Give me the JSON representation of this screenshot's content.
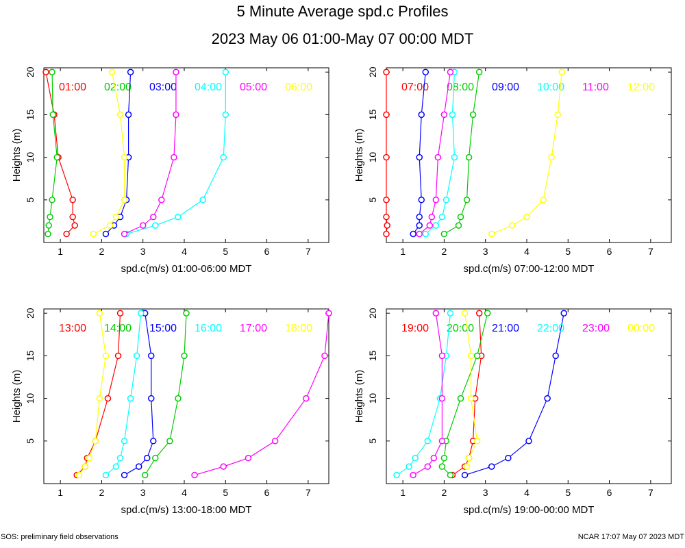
{
  "page": {
    "title": "5 Minute Average spd.c Profiles",
    "subtitle": "2023 May 06 01:00-May 07 00:00 MDT",
    "footer_left": "SOS: preliminary field observations",
    "footer_right": "NCAR 17:07 May 07 2023 MDT"
  },
  "chart_data": [
    {
      "type": "line",
      "xlabel": "spd.c(m/s) 01:00-06:00 MDT",
      "ylabel": "Heights (m)",
      "xlim": [
        0.6,
        7.5
      ],
      "ylim": [
        0,
        20.5
      ],
      "xticks": [
        1,
        2,
        3,
        4,
        5,
        6,
        7
      ],
      "yticks": [
        5,
        10,
        15,
        20
      ],
      "series": [
        {
          "name": "01:00",
          "color": "#ff0000",
          "points": [
            [
              1.15,
              1
            ],
            [
              1.35,
              2
            ],
            [
              1.3,
              3
            ],
            [
              1.3,
              5
            ],
            [
              0.95,
              10
            ],
            [
              0.85,
              15
            ],
            [
              0.65,
              20
            ]
          ]
        },
        {
          "name": "02:00",
          "color": "#00cc00",
          "points": [
            [
              0.7,
              1
            ],
            [
              0.72,
              2
            ],
            [
              0.75,
              3
            ],
            [
              0.8,
              5
            ],
            [
              0.92,
              10
            ],
            [
              0.82,
              15
            ],
            [
              0.8,
              20
            ]
          ]
        },
        {
          "name": "03:00",
          "color": "#0000ff",
          "points": [
            [
              2.1,
              1
            ],
            [
              2.3,
              2
            ],
            [
              2.45,
              3
            ],
            [
              2.6,
              5
            ],
            [
              2.65,
              10
            ],
            [
              2.65,
              15
            ],
            [
              2.7,
              20
            ]
          ]
        },
        {
          "name": "04:00",
          "color": "#00ffff",
          "points": [
            [
              2.6,
              1
            ],
            [
              3.3,
              2
            ],
            [
              3.85,
              3
            ],
            [
              4.45,
              5
            ],
            [
              4.95,
              10
            ],
            [
              5.0,
              15
            ],
            [
              5.0,
              20
            ]
          ]
        },
        {
          "name": "05:00",
          "color": "#ff00ff",
          "points": [
            [
              2.55,
              1
            ],
            [
              3.0,
              2
            ],
            [
              3.25,
              3
            ],
            [
              3.45,
              5
            ],
            [
              3.75,
              10
            ],
            [
              3.8,
              15
            ],
            [
              3.8,
              20
            ]
          ]
        },
        {
          "name": "06:00",
          "color": "#ffff00",
          "points": [
            [
              1.8,
              1
            ],
            [
              2.2,
              2
            ],
            [
              2.35,
              3
            ],
            [
              2.55,
              5
            ],
            [
              2.55,
              10
            ],
            [
              2.45,
              15
            ],
            [
              2.25,
              20
            ]
          ]
        }
      ]
    },
    {
      "type": "line",
      "xlabel": "spd.c(m/s) 07:00-12:00 MDT",
      "ylabel": "Heights (m)",
      "xlim": [
        0.6,
        7.5
      ],
      "ylim": [
        0,
        20.5
      ],
      "xticks": [
        1,
        2,
        3,
        4,
        5,
        6,
        7
      ],
      "yticks": [
        5,
        10,
        15,
        20
      ],
      "series": [
        {
          "name": "07:00",
          "color": "#ff0000",
          "points": [
            [
              0.6,
              1
            ],
            [
              0.62,
              2
            ],
            [
              0.6,
              3
            ],
            [
              0.6,
              5
            ],
            [
              0.6,
              10
            ],
            [
              0.6,
              15
            ],
            [
              0.6,
              20
            ]
          ]
        },
        {
          "name": "08:00",
          "color": "#00cc00",
          "points": [
            [
              2.0,
              1
            ],
            [
              2.35,
              2
            ],
            [
              2.4,
              3
            ],
            [
              2.55,
              5
            ],
            [
              2.6,
              10
            ],
            [
              2.7,
              15
            ],
            [
              2.85,
              20
            ]
          ]
        },
        {
          "name": "09:00",
          "color": "#0000ff",
          "points": [
            [
              1.25,
              1
            ],
            [
              1.4,
              2
            ],
            [
              1.4,
              3
            ],
            [
              1.45,
              5
            ],
            [
              1.4,
              10
            ],
            [
              1.45,
              15
            ],
            [
              1.55,
              20
            ]
          ]
        },
        {
          "name": "10:00",
          "color": "#00ffff",
          "points": [
            [
              1.55,
              1
            ],
            [
              1.8,
              2
            ],
            [
              1.95,
              3
            ],
            [
              2.05,
              5
            ],
            [
              2.25,
              10
            ],
            [
              2.2,
              15
            ],
            [
              2.25,
              20
            ]
          ]
        },
        {
          "name": "11:00",
          "color": "#ff00ff",
          "points": [
            [
              1.4,
              1
            ],
            [
              1.65,
              2
            ],
            [
              1.7,
              3
            ],
            [
              1.8,
              5
            ],
            [
              1.85,
              10
            ],
            [
              2.0,
              15
            ],
            [
              2.15,
              20
            ]
          ]
        },
        {
          "name": "12:00",
          "color": "#ffff00",
          "points": [
            [
              3.15,
              1
            ],
            [
              3.65,
              2
            ],
            [
              4.0,
              3
            ],
            [
              4.4,
              5
            ],
            [
              4.6,
              10
            ],
            [
              4.75,
              15
            ],
            [
              4.85,
              20
            ]
          ]
        }
      ]
    },
    {
      "type": "line",
      "xlabel": "spd.c(m/s) 13:00-18:00 MDT",
      "ylabel": "Heights (m)",
      "xlim": [
        0.6,
        7.5
      ],
      "ylim": [
        0,
        20.5
      ],
      "xticks": [
        1,
        2,
        3,
        4,
        5,
        6,
        7
      ],
      "yticks": [
        5,
        10,
        15,
        20
      ],
      "series": [
        {
          "name": "13:00",
          "color": "#ff0000",
          "points": [
            [
              1.4,
              1
            ],
            [
              1.6,
              2
            ],
            [
              1.65,
              3
            ],
            [
              1.85,
              5
            ],
            [
              2.15,
              10
            ],
            [
              2.4,
              15
            ],
            [
              2.45,
              20
            ]
          ]
        },
        {
          "name": "14:00",
          "color": "#00cc00",
          "points": [
            [
              3.05,
              1
            ],
            [
              3.3,
              3
            ],
            [
              3.65,
              5
            ],
            [
              3.85,
              10
            ],
            [
              4.0,
              15
            ],
            [
              4.05,
              20
            ]
          ]
        },
        {
          "name": "15:00",
          "color": "#0000ff",
          "points": [
            [
              2.55,
              1
            ],
            [
              2.9,
              2
            ],
            [
              3.1,
              3
            ],
            [
              3.25,
              5
            ],
            [
              3.2,
              10
            ],
            [
              3.2,
              15
            ],
            [
              3.05,
              20
            ]
          ]
        },
        {
          "name": "16:00",
          "color": "#00ffff",
          "points": [
            [
              2.1,
              1
            ],
            [
              2.35,
              2
            ],
            [
              2.45,
              3
            ],
            [
              2.55,
              5
            ],
            [
              2.7,
              10
            ],
            [
              2.85,
              15
            ],
            [
              2.95,
              20
            ]
          ]
        },
        {
          "name": "17:00",
          "color": "#ff00ff",
          "points": [
            [
              4.25,
              1
            ],
            [
              4.95,
              2
            ],
            [
              5.55,
              3
            ],
            [
              6.2,
              5
            ],
            [
              6.95,
              10
            ],
            [
              7.4,
              15
            ],
            [
              7.5,
              20
            ]
          ]
        },
        {
          "name": "18:00",
          "color": "#ffff00",
          "points": [
            [
              1.45,
              1
            ],
            [
              1.6,
              2
            ],
            [
              1.7,
              3
            ],
            [
              1.85,
              5
            ],
            [
              1.95,
              10
            ],
            [
              2.1,
              15
            ],
            [
              1.95,
              20
            ]
          ]
        }
      ]
    },
    {
      "type": "line",
      "xlabel": "spd.c(m/s) 19:00-00:00 MDT",
      "ylabel": "Heights (m)",
      "xlim": [
        0.6,
        7.5
      ],
      "ylim": [
        0,
        20.5
      ],
      "xticks": [
        1,
        2,
        3,
        4,
        5,
        6,
        7
      ],
      "yticks": [
        5,
        10,
        15,
        20
      ],
      "series": [
        {
          "name": "19:00",
          "color": "#ff0000",
          "points": [
            [
              2.2,
              1
            ],
            [
              2.5,
              2
            ],
            [
              2.6,
              3
            ],
            [
              2.7,
              5
            ],
            [
              2.75,
              10
            ],
            [
              2.9,
              15
            ],
            [
              2.85,
              20
            ]
          ]
        },
        {
          "name": "20:00",
          "color": "#00cc00",
          "points": [
            [
              2.15,
              1
            ],
            [
              1.95,
              2
            ],
            [
              2.0,
              3
            ],
            [
              2.05,
              5
            ],
            [
              2.4,
              10
            ],
            [
              2.8,
              15
            ],
            [
              3.05,
              20
            ]
          ]
        },
        {
          "name": "21:00",
          "color": "#0000ff",
          "points": [
            [
              2.5,
              1
            ],
            [
              3.15,
              2
            ],
            [
              3.55,
              3
            ],
            [
              4.05,
              5
            ],
            [
              4.5,
              10
            ],
            [
              4.7,
              15
            ],
            [
              4.9,
              20
            ]
          ]
        },
        {
          "name": "22:00",
          "color": "#00ffff",
          "points": [
            [
              0.85,
              1
            ],
            [
              1.15,
              2
            ],
            [
              1.3,
              3
            ],
            [
              1.6,
              5
            ],
            [
              1.9,
              10
            ],
            [
              2.05,
              15
            ],
            [
              2.15,
              20
            ]
          ]
        },
        {
          "name": "23:00",
          "color": "#ff00ff",
          "points": [
            [
              1.25,
              1
            ],
            [
              1.6,
              2
            ],
            [
              1.75,
              3
            ],
            [
              1.95,
              5
            ],
            [
              1.95,
              10
            ],
            [
              1.95,
              15
            ],
            [
              1.8,
              20
            ]
          ]
        },
        {
          "name": "00:00",
          "color": "#ffff00",
          "points": [
            [
              2.55,
              2
            ],
            [
              2.6,
              3
            ],
            [
              2.8,
              5
            ],
            [
              2.65,
              10
            ],
            [
              2.65,
              15
            ],
            [
              2.5,
              20
            ]
          ]
        }
      ]
    }
  ]
}
